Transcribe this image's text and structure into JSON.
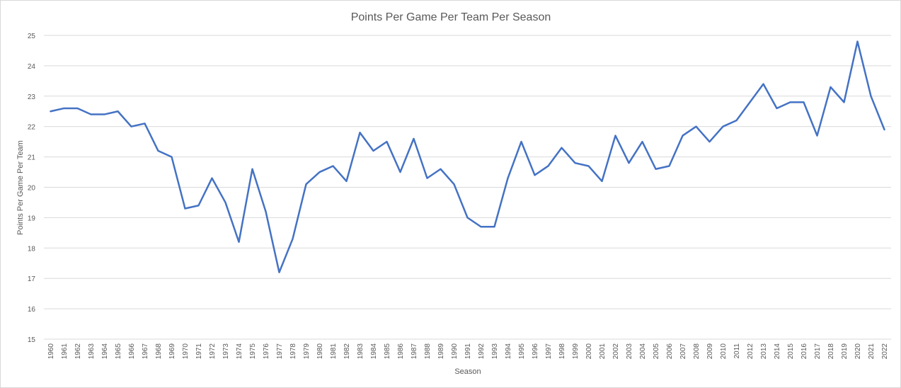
{
  "chart_data": {
    "type": "line",
    "title": "Points Per Game Per Team Per Season",
    "xlabel": "Season",
    "ylabel": "Points Per Game Per Team",
    "ylim": [
      15,
      25
    ],
    "yticks": [
      15,
      16,
      17,
      18,
      19,
      20,
      21,
      22,
      23,
      24,
      25
    ],
    "grid": true,
    "legend": "none",
    "colors": {
      "series": "#4472c4",
      "grid": "#d9d9d9",
      "text": "#595959"
    },
    "categories": [
      "1960",
      "1961",
      "1962",
      "1963",
      "1964",
      "1965",
      "1966",
      "1967",
      "1968",
      "1969",
      "1970",
      "1971",
      "1972",
      "1973",
      "1974",
      "1975",
      "1976",
      "1977",
      "1978",
      "1979",
      "1980",
      "1981",
      "1982",
      "1983",
      "1984",
      "1985",
      "1986",
      "1987",
      "1988",
      "1989",
      "1990",
      "1991",
      "1992",
      "1993",
      "1994",
      "1995",
      "1996",
      "1997",
      "1998",
      "1999",
      "2000",
      "2001",
      "2002",
      "2003",
      "2004",
      "2005",
      "2006",
      "2007",
      "2008",
      "2009",
      "2010",
      "2011",
      "2012",
      "2013",
      "2014",
      "2015",
      "2016",
      "2017",
      "2018",
      "2019",
      "2020",
      "2021",
      "2022"
    ],
    "series": [
      {
        "values": [
          22.5,
          22.6,
          22.6,
          22.4,
          22.4,
          22.5,
          22.0,
          22.1,
          21.2,
          21.0,
          19.3,
          19.4,
          20.3,
          19.5,
          18.2,
          20.6,
          19.2,
          17.2,
          18.3,
          20.1,
          20.5,
          20.7,
          20.2,
          21.8,
          21.2,
          21.5,
          20.5,
          21.6,
          20.3,
          20.6,
          20.1,
          19.0,
          18.7,
          18.7,
          20.3,
          21.5,
          20.4,
          20.7,
          21.3,
          20.8,
          20.7,
          20.2,
          21.7,
          20.8,
          21.5,
          20.6,
          20.7,
          21.7,
          22.0,
          21.5,
          22.0,
          22.2,
          22.8,
          23.4,
          22.6,
          22.8,
          22.8,
          21.7,
          23.3,
          22.8,
          24.8,
          23.0,
          21.9
        ]
      }
    ]
  }
}
